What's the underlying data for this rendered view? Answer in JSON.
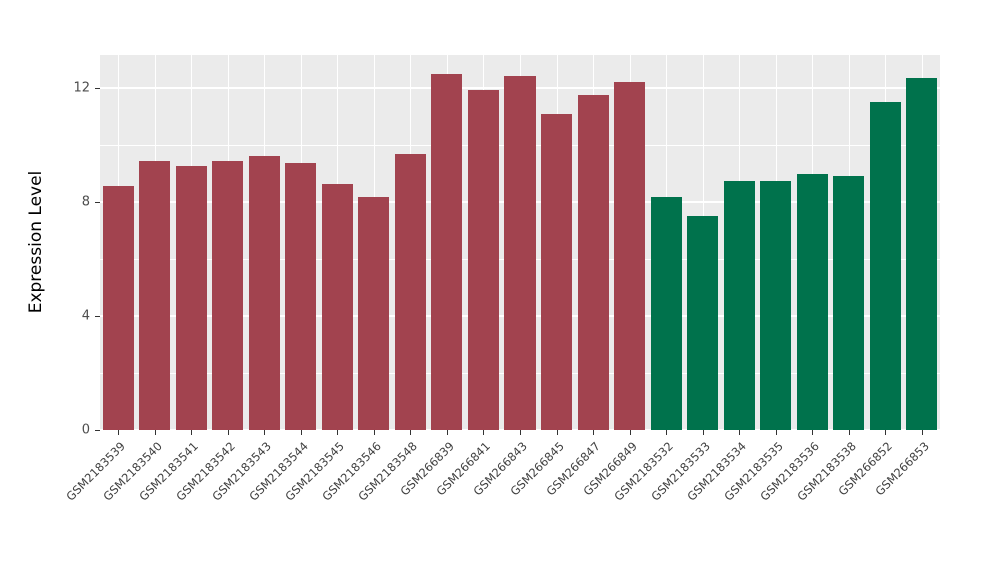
{
  "chart_data": {
    "type": "bar",
    "title": "",
    "ylabel": "Expression Level",
    "xlabel": "",
    "ylim": [
      0,
      13.16
    ],
    "yticks": [
      0,
      4,
      8,
      12
    ],
    "yticks_minor": [
      2,
      6,
      10
    ],
    "grid": true,
    "legend": "none",
    "panel_bg": "#EBEBEB",
    "gridline_color": "#FFFFFF",
    "axis_text_color": "#4D4D4D",
    "categories": [
      "GSM2183539",
      "GSM2183540",
      "GSM2183541",
      "GSM2183542",
      "GSM2183543",
      "GSM2183544",
      "GSM2183545",
      "GSM2183546",
      "GSM2183548",
      "GSM266839",
      "GSM266841",
      "GSM266843",
      "GSM266845",
      "GSM266847",
      "GSM266849",
      "GSM2183532",
      "GSM2183533",
      "GSM2183534",
      "GSM2183535",
      "GSM2183536",
      "GSM2183538",
      "GSM266852",
      "GSM266853"
    ],
    "values": [
      8.55,
      9.44,
      9.26,
      9.44,
      9.61,
      9.37,
      8.63,
      8.18,
      9.68,
      12.49,
      11.93,
      12.42,
      11.09,
      11.75,
      12.21,
      8.18,
      7.51,
      8.74,
      8.74,
      8.98,
      8.91,
      11.51,
      12.35
    ],
    "groups": [
      "group1",
      "group1",
      "group1",
      "group1",
      "group1",
      "group1",
      "group1",
      "group1",
      "group1",
      "group1",
      "group1",
      "group1",
      "group1",
      "group1",
      "group1",
      "group2",
      "group2",
      "group2",
      "group2",
      "group2",
      "group2",
      "group2",
      "group2"
    ],
    "group_colors": {
      "group1": "#A2434F",
      "group2": "#00724C"
    }
  }
}
